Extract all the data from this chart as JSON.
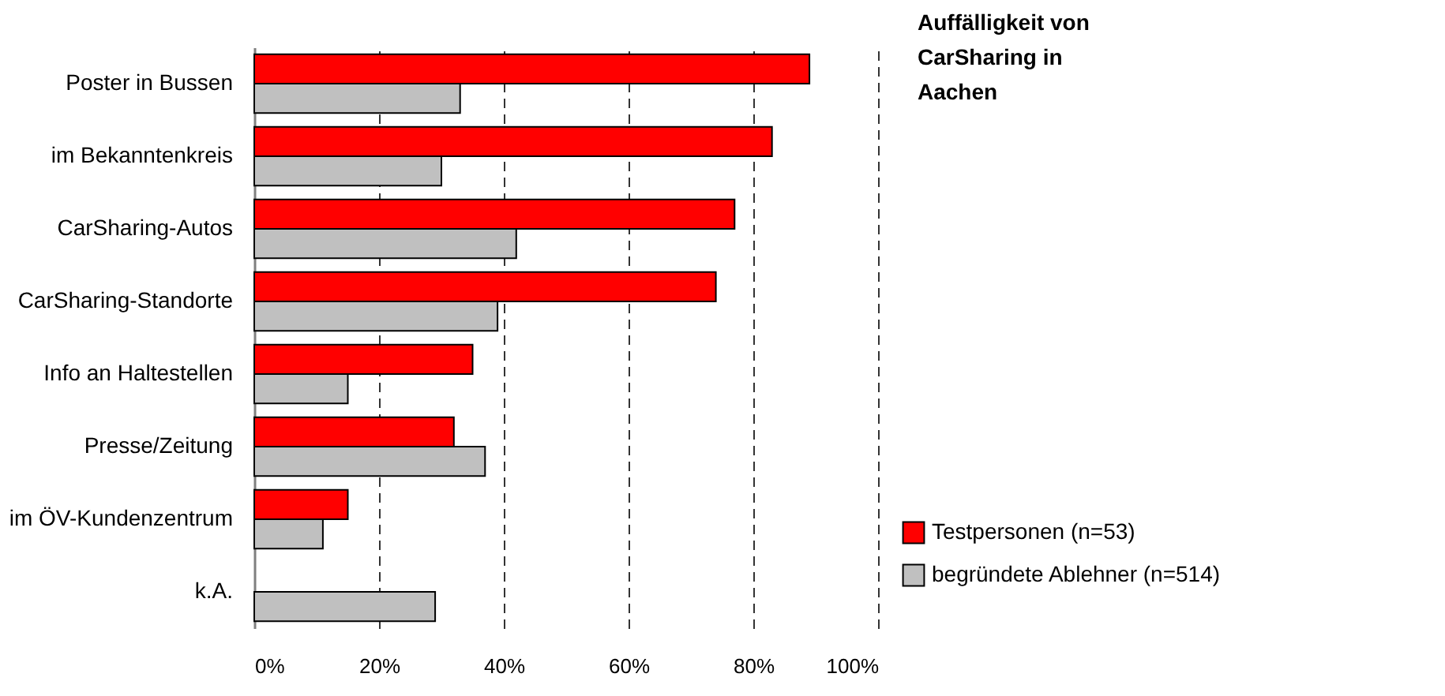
{
  "chart_data": {
    "type": "bar",
    "orientation": "horizontal",
    "title": "Auffälligkeit von CarSharing in Aachen",
    "categories": [
      "Poster in Bussen",
      "im Bekanntenkreis",
      "CarSharing-Autos",
      "CarSharing-Standorte",
      "Info an Haltestellen",
      "Presse/Zeitung",
      "im ÖV-Kundenzentrum",
      "k.A."
    ],
    "series": [
      {
        "name": "Testpersonen (n=53)",
        "color": "#ff0000",
        "values": [
          89,
          83,
          77,
          74,
          35,
          32,
          15,
          null
        ]
      },
      {
        "name": "begründete Ablehner (n=514)",
        "color": "#c0c0c0",
        "values": [
          33,
          30,
          42,
          39,
          15,
          37,
          11,
          29
        ]
      }
    ],
    "xlim": [
      0,
      100
    ],
    "xticks": [
      {
        "value": 0,
        "label": "0%"
      },
      {
        "value": 20,
        "label": "20%"
      },
      {
        "value": 40,
        "label": "40%"
      },
      {
        "value": 60,
        "label": "60%"
      },
      {
        "value": 80,
        "label": "80%"
      },
      {
        "value": 100,
        "label": "100%"
      }
    ],
    "grid": "x",
    "legend": "bottom right"
  }
}
